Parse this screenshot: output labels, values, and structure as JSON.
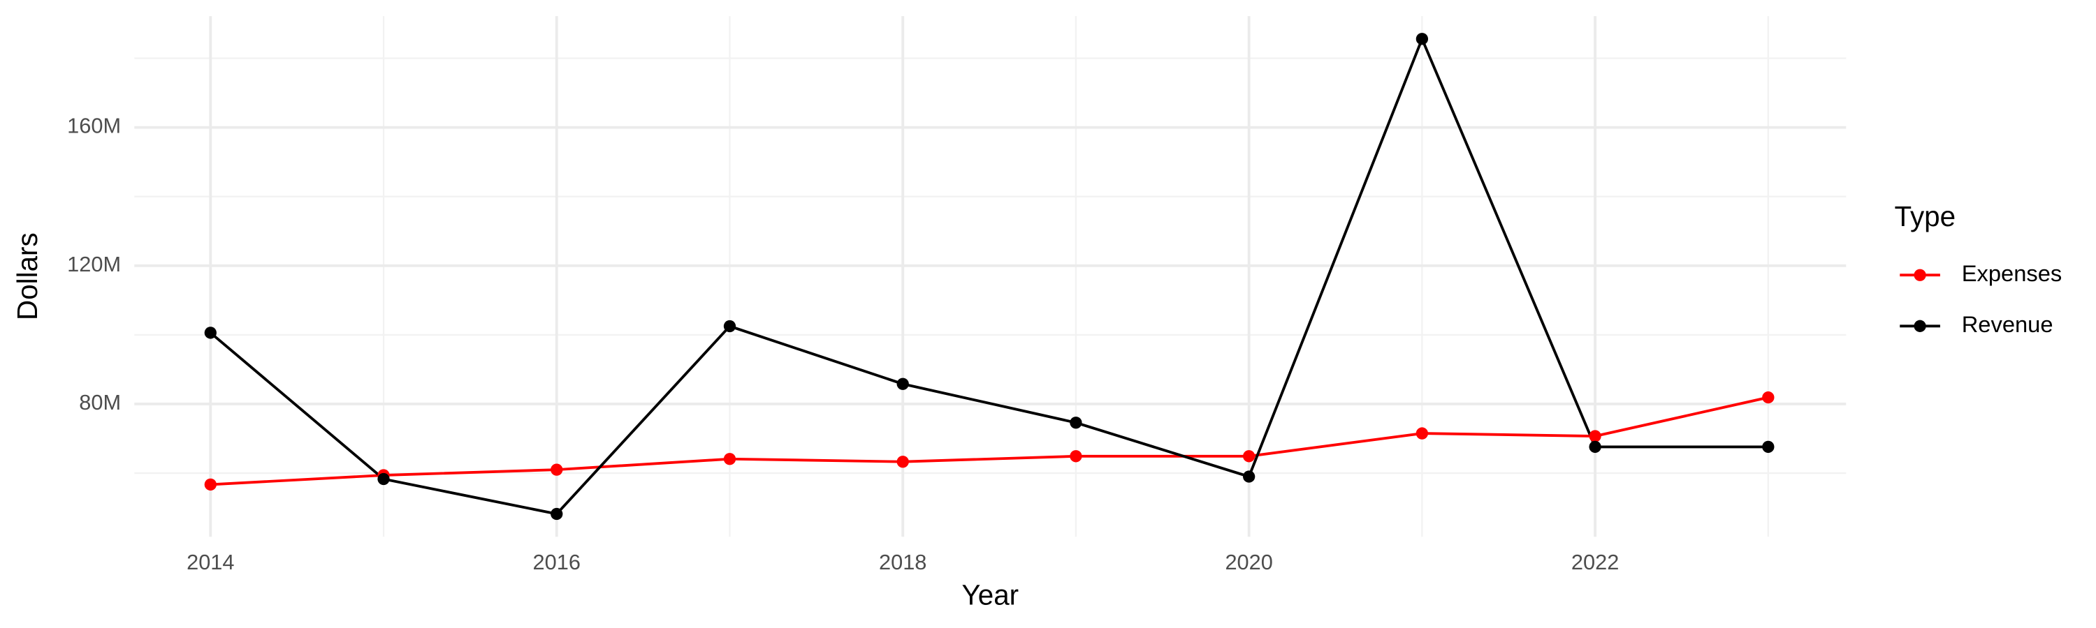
{
  "chart_data": {
    "type": "line",
    "x_label": "Year",
    "y_label": "Dollars",
    "legend_title": "Type",
    "x": [
      2014,
      2015,
      2016,
      2017,
      2018,
      2019,
      2020,
      2021,
      2022,
      2023
    ],
    "series": [
      {
        "name": "Expenses",
        "color": "#ff0000",
        "values": [
          56700000,
          59400000,
          61000000,
          64100000,
          63300000,
          64900000,
          64900000,
          71500000,
          70700000,
          81900000
        ]
      },
      {
        "name": "Revenue",
        "color": "#000000",
        "values": [
          100600000,
          58300000,
          48200000,
          102500000,
          85800000,
          74600000,
          59000000,
          185600000,
          67600000,
          67600000
        ]
      }
    ],
    "xlim": [
      2013.56,
      2023.45
    ],
    "xticks": [
      2014,
      2016,
      2018,
      2020,
      2022
    ],
    "minor_xticks": [
      2015,
      2017,
      2019,
      2021,
      2023
    ],
    "ylim": [
      41600000,
      192200000
    ],
    "yticks": [
      {
        "value": 80000000,
        "label": "80M"
      },
      {
        "value": 120000000,
        "label": "120M"
      },
      {
        "value": 160000000,
        "label": "160M"
      }
    ],
    "minor_yticks": [
      60000000,
      100000000,
      140000000,
      180000000
    ],
    "grid": true,
    "legend_position": "right"
  }
}
